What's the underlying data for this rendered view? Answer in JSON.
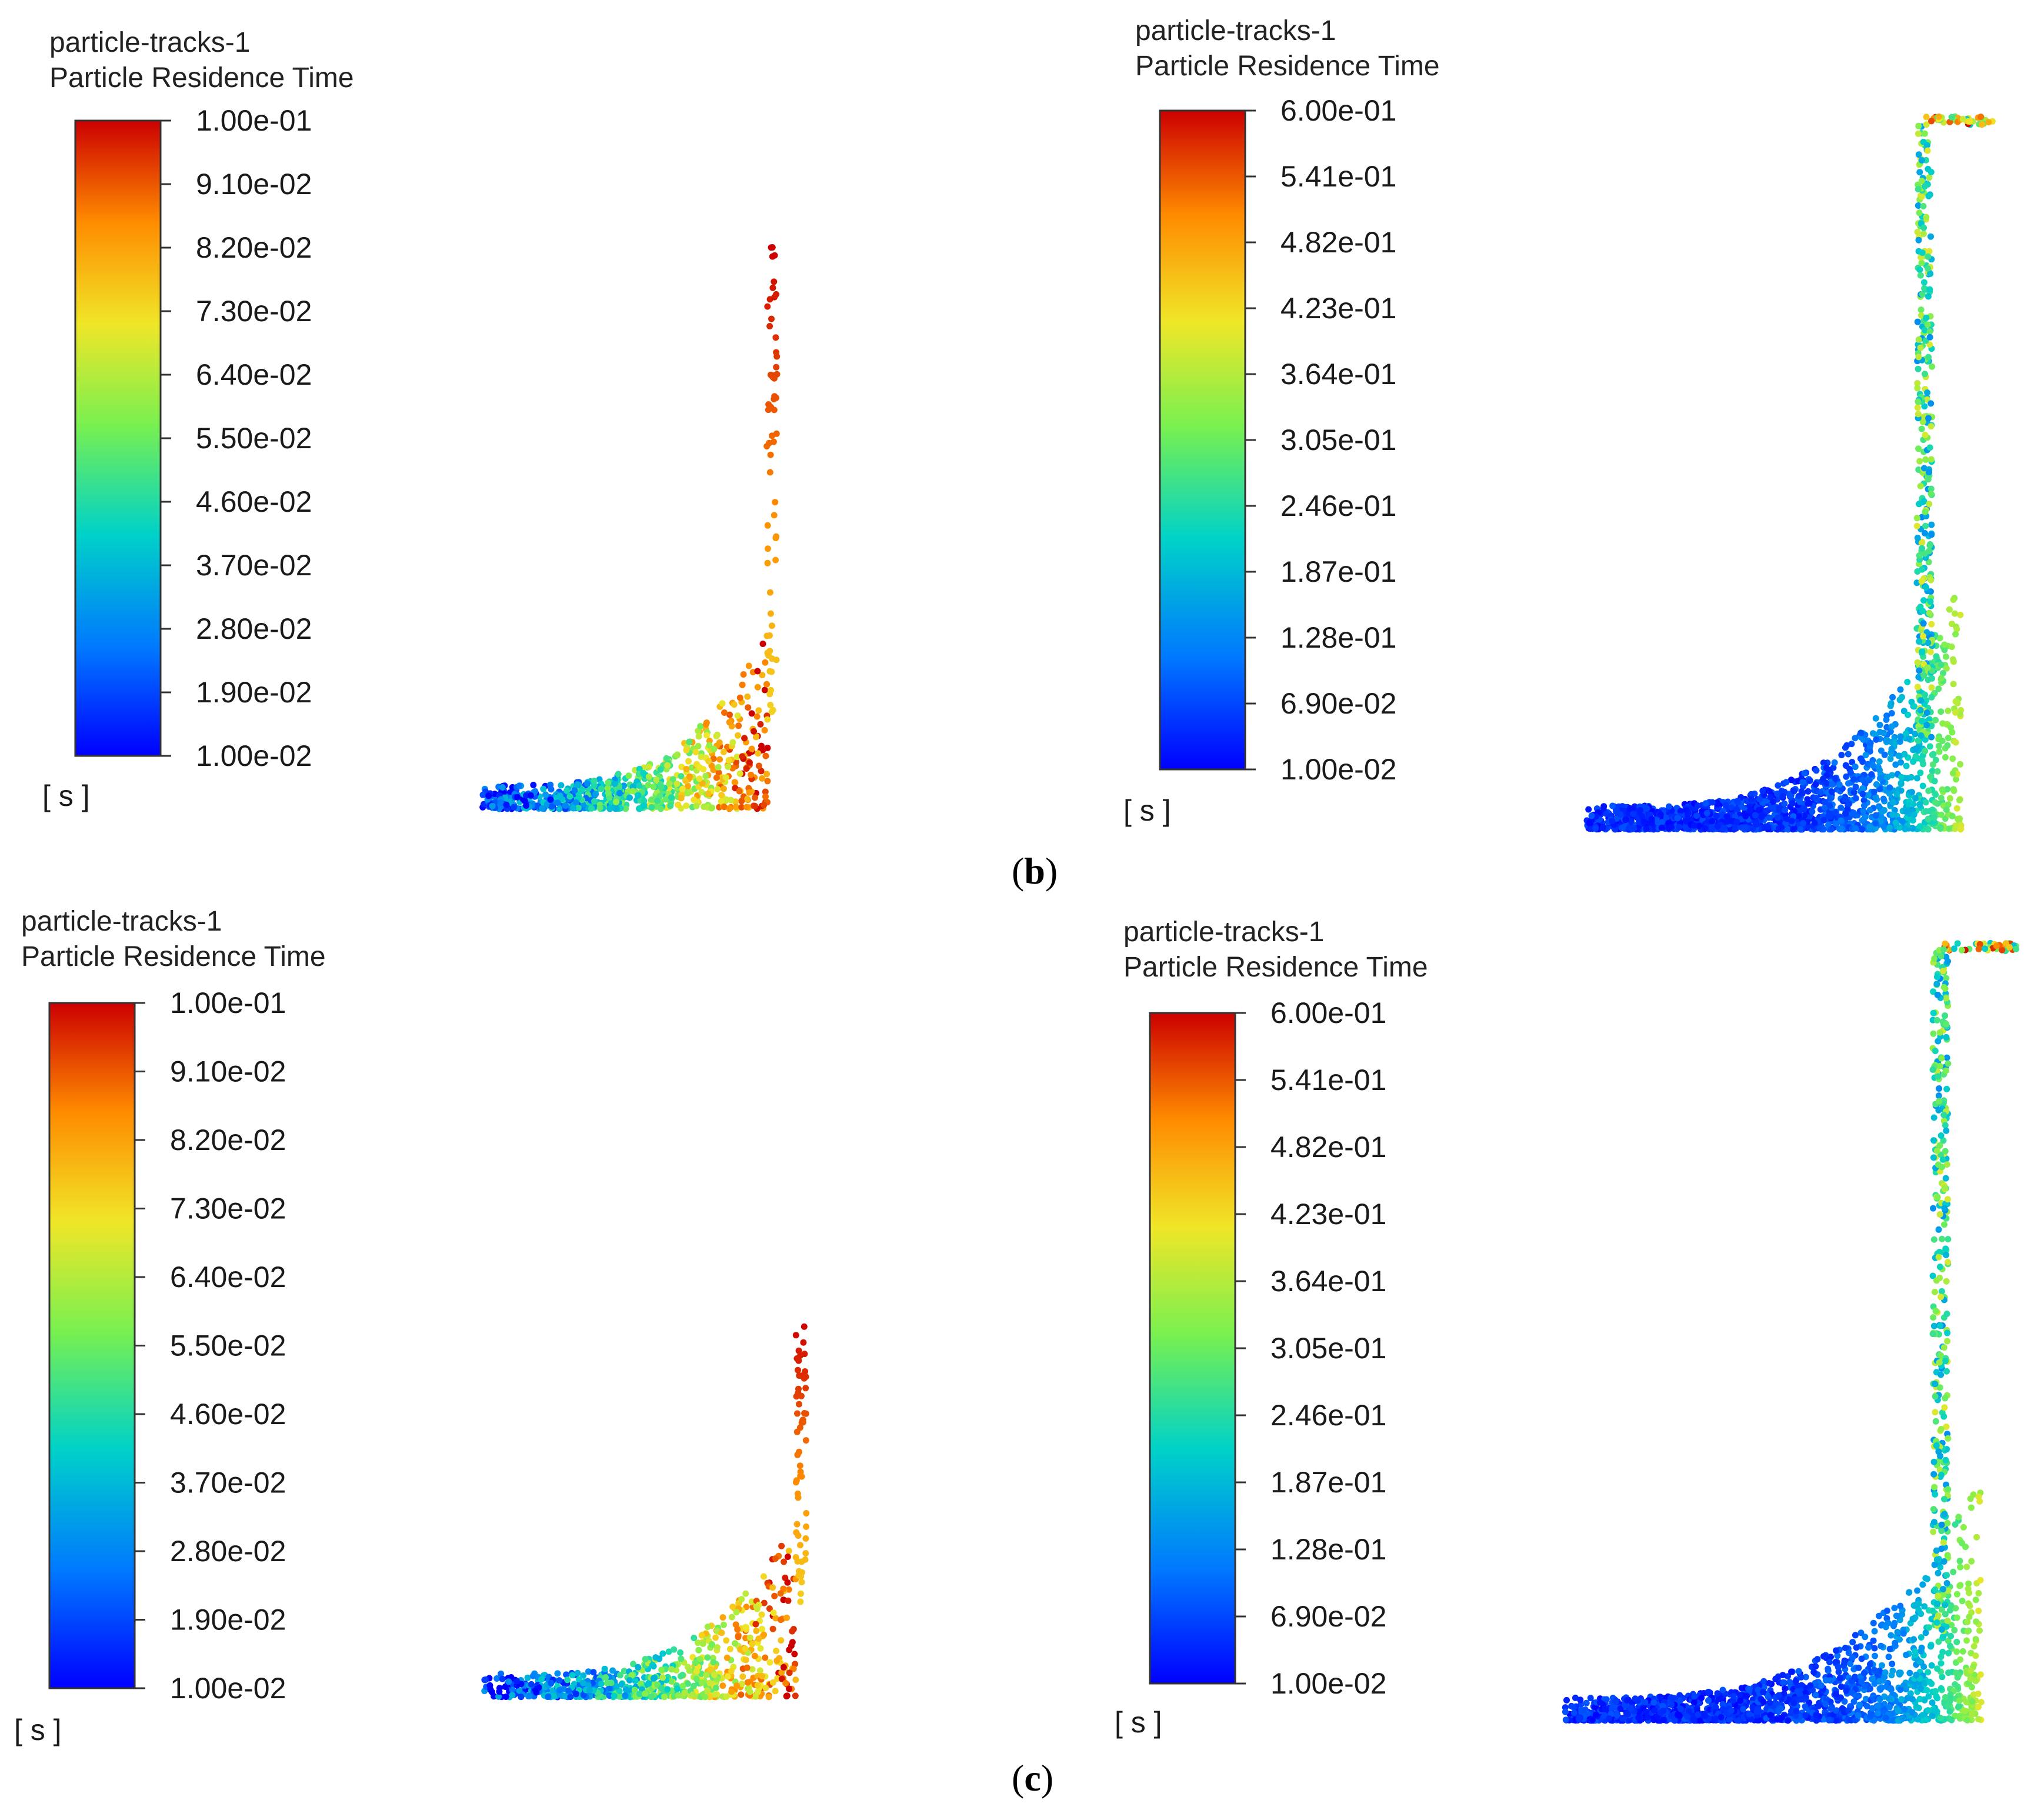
{
  "figure": {
    "panel_labels": [
      {
        "open": "(",
        "letter": "b",
        "close": ")"
      },
      {
        "open": "(",
        "letter": "c",
        "close": ")"
      }
    ]
  },
  "chart_data": [
    {
      "type": "scatter",
      "title": "particle-tracks-1",
      "subtitle": "Particle Residence Time",
      "colorbar": {
        "unit": "[ s ]",
        "min": 0.01,
        "max": 0.1,
        "ticks": [
          "1.00e-01",
          "9.10e-02",
          "8.20e-02",
          "7.30e-02",
          "6.40e-02",
          "5.50e-02",
          "4.60e-02",
          "3.70e-02",
          "2.80e-02",
          "1.90e-02",
          "1.00e-02"
        ],
        "colormap": [
          "#0000ff",
          "#0078ff",
          "#00d2c8",
          "#78f050",
          "#f0e628",
          "#ff8c00",
          "#cc0000"
        ]
      },
      "geometry": "short-outlet",
      "seed": 11
    },
    {
      "type": "scatter",
      "title": "particle-tracks-1",
      "subtitle": "Particle Residence Time",
      "colorbar": {
        "unit": "[ s ]",
        "min": 0.01,
        "max": 0.6,
        "ticks": [
          "6.00e-01",
          "5.41e-01",
          "4.82e-01",
          "4.23e-01",
          "3.64e-01",
          "3.05e-01",
          "2.46e-01",
          "1.87e-01",
          "1.28e-01",
          "6.90e-02",
          "1.00e-02"
        ],
        "colormap": [
          "#0000ff",
          "#0078ff",
          "#00d2c8",
          "#78f050",
          "#f0e628",
          "#ff8c00",
          "#cc0000"
        ]
      },
      "geometry": "tall-outlet",
      "seed": 23
    },
    {
      "type": "scatter",
      "title": "particle-tracks-1",
      "subtitle": "Particle Residence Time",
      "colorbar": {
        "unit": "[ s ]",
        "min": 0.01,
        "max": 0.1,
        "ticks": [
          "1.00e-01",
          "9.10e-02",
          "8.20e-02",
          "7.30e-02",
          "6.40e-02",
          "5.50e-02",
          "4.60e-02",
          "3.70e-02",
          "2.80e-02",
          "1.90e-02",
          "1.00e-02"
        ],
        "colormap": [
          "#0000ff",
          "#0078ff",
          "#00d2c8",
          "#78f050",
          "#f0e628",
          "#ff8c00",
          "#cc0000"
        ]
      },
      "geometry": "short-outlet",
      "seed": 37
    },
    {
      "type": "scatter",
      "title": "particle-tracks-1",
      "subtitle": "Particle Residence Time",
      "colorbar": {
        "unit": "[ s ]",
        "min": 0.01,
        "max": 0.6,
        "ticks": [
          "6.00e-01",
          "5.41e-01",
          "4.82e-01",
          "4.23e-01",
          "3.64e-01",
          "3.05e-01",
          "2.46e-01",
          "1.87e-01",
          "1.28e-01",
          "6.90e-02",
          "1.00e-02"
        ],
        "colormap": [
          "#0000ff",
          "#0078ff",
          "#00d2c8",
          "#78f050",
          "#f0e628",
          "#ff8c00",
          "#cc0000"
        ]
      },
      "geometry": "tall-outlet",
      "seed": 53
    }
  ]
}
